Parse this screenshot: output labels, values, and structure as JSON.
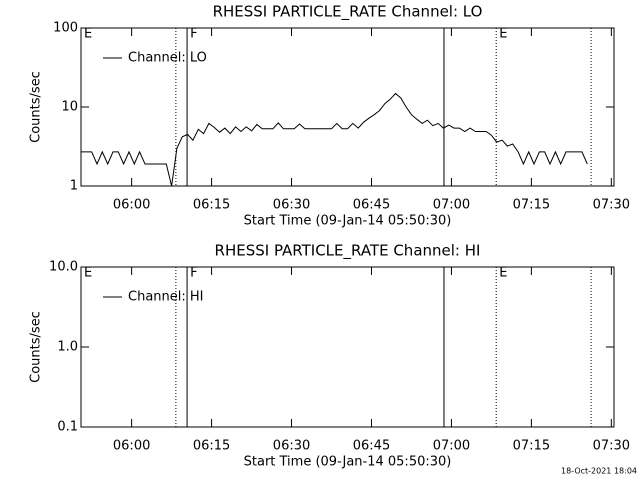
{
  "chart_data": [
    {
      "type": "line",
      "title": "RHESSI PARTICLE_RATE Channel: LO",
      "ylabel": "Counts/sec",
      "xlabel": "Start Time (09-Jan-14 05:50:30)",
      "log_y": true,
      "ylim": [
        1,
        100
      ],
      "yticks": [
        1,
        10,
        100
      ],
      "xlim": [
        0,
        100
      ],
      "xticks": [
        {
          "value": 9.5,
          "label": "06:00"
        },
        {
          "value": 24.5,
          "label": "06:15"
        },
        {
          "value": 39.5,
          "label": "06:30"
        },
        {
          "value": 54.5,
          "label": "06:45"
        },
        {
          "value": 69.5,
          "label": "07:00"
        },
        {
          "value": 84.5,
          "label": "07:15"
        },
        {
          "value": 99.5,
          "label": "07:30"
        }
      ],
      "flags": [
        {
          "x": 0,
          "label": "E",
          "style": "dotted"
        },
        {
          "x": 17.8,
          "style": "dotted"
        },
        {
          "x": 19.9,
          "label": "F",
          "style": "solid"
        },
        {
          "x": 68.1,
          "style": "solid"
        },
        {
          "x": 77.9,
          "label": "E",
          "style": "dotted"
        },
        {
          "x": 95.7,
          "style": "dotted"
        }
      ],
      "x": [
        0,
        1,
        2,
        3,
        4,
        5,
        6,
        7,
        8,
        9,
        10,
        11,
        12,
        13,
        14,
        15,
        16,
        17,
        18,
        19,
        20,
        21,
        22,
        23,
        24,
        25,
        26,
        27,
        28,
        29,
        30,
        31,
        32,
        33,
        34,
        35,
        36,
        37,
        38,
        39,
        40,
        41,
        42,
        43,
        44,
        45,
        46,
        47,
        48,
        49,
        50,
        51,
        52,
        53,
        54,
        55,
        56,
        57,
        58,
        59,
        60,
        61,
        62,
        63,
        64,
        65,
        66,
        67,
        68,
        69,
        70,
        71,
        72,
        73,
        74,
        75,
        76,
        77,
        78,
        79,
        80,
        81,
        82,
        83,
        84,
        85,
        86,
        87,
        88,
        89,
        90,
        91,
        92,
        93,
        94,
        95
      ],
      "series": [
        {
          "name": "Channel: LO",
          "color": "#000000",
          "values": [
            2.7,
            2.7,
            2.7,
            1.9,
            2.7,
            1.9,
            2.7,
            2.7,
            1.9,
            2.7,
            1.9,
            2.7,
            1.9,
            1.9,
            1.9,
            1.9,
            1.9,
            1.0,
            3.0,
            4.2,
            4.5,
            3.8,
            5.2,
            4.6,
            6.2,
            5.5,
            4.8,
            5.4,
            4.6,
            5.6,
            4.9,
            5.6,
            5.0,
            6.0,
            5.3,
            5.3,
            5.3,
            6.3,
            5.3,
            5.3,
            5.3,
            6.1,
            5.3,
            5.3,
            5.3,
            5.3,
            5.3,
            5.3,
            6.2,
            5.3,
            5.3,
            6.2,
            5.4,
            6.4,
            7.2,
            8.0,
            9.0,
            11.0,
            12.5,
            14.8,
            13.0,
            10.0,
            8.0,
            7.0,
            6.2,
            6.8,
            5.8,
            6.2,
            5.4,
            5.9,
            5.4,
            5.4,
            4.9,
            5.4,
            4.9,
            4.9,
            4.9,
            4.4,
            3.6,
            3.8,
            3.2,
            3.4,
            2.7,
            1.9,
            2.7,
            1.9,
            2.7,
            2.7,
            1.9,
            2.7,
            1.9,
            2.7,
            2.7,
            2.7,
            2.7,
            1.9
          ]
        }
      ]
    },
    {
      "type": "line",
      "title": "RHESSI PARTICLE_RATE Channel: HI",
      "ylabel": "Counts/sec",
      "xlabel": "Start Time (09-Jan-14 05:50:30)",
      "log_y": true,
      "ylim": [
        0.1,
        10
      ],
      "yticks": [
        0.1,
        {
          "value": 1,
          "label": "1.0"
        },
        {
          "value": 10,
          "label": "10.0"
        }
      ],
      "xlim": [
        0,
        100
      ],
      "xticks": [
        {
          "value": 9.5,
          "label": "06:00"
        },
        {
          "value": 24.5,
          "label": "06:15"
        },
        {
          "value": 39.5,
          "label": "06:30"
        },
        {
          "value": 54.5,
          "label": "06:45"
        },
        {
          "value": 69.5,
          "label": "07:00"
        },
        {
          "value": 84.5,
          "label": "07:15"
        },
        {
          "value": 99.5,
          "label": "07:30"
        }
      ],
      "flags": [
        {
          "x": 0,
          "label": "E",
          "style": "dotted"
        },
        {
          "x": 17.8,
          "style": "dotted"
        },
        {
          "x": 19.9,
          "label": "F",
          "style": "solid"
        },
        {
          "x": 68.1,
          "style": "solid"
        },
        {
          "x": 77.9,
          "label": "E",
          "style": "dotted"
        },
        {
          "x": 95.7,
          "style": "dotted"
        }
      ],
      "x": [],
      "series": [
        {
          "name": "Channel: HI",
          "color": "#000000",
          "values": []
        }
      ]
    }
  ],
  "footer": "18-Oct-2021 18:04"
}
